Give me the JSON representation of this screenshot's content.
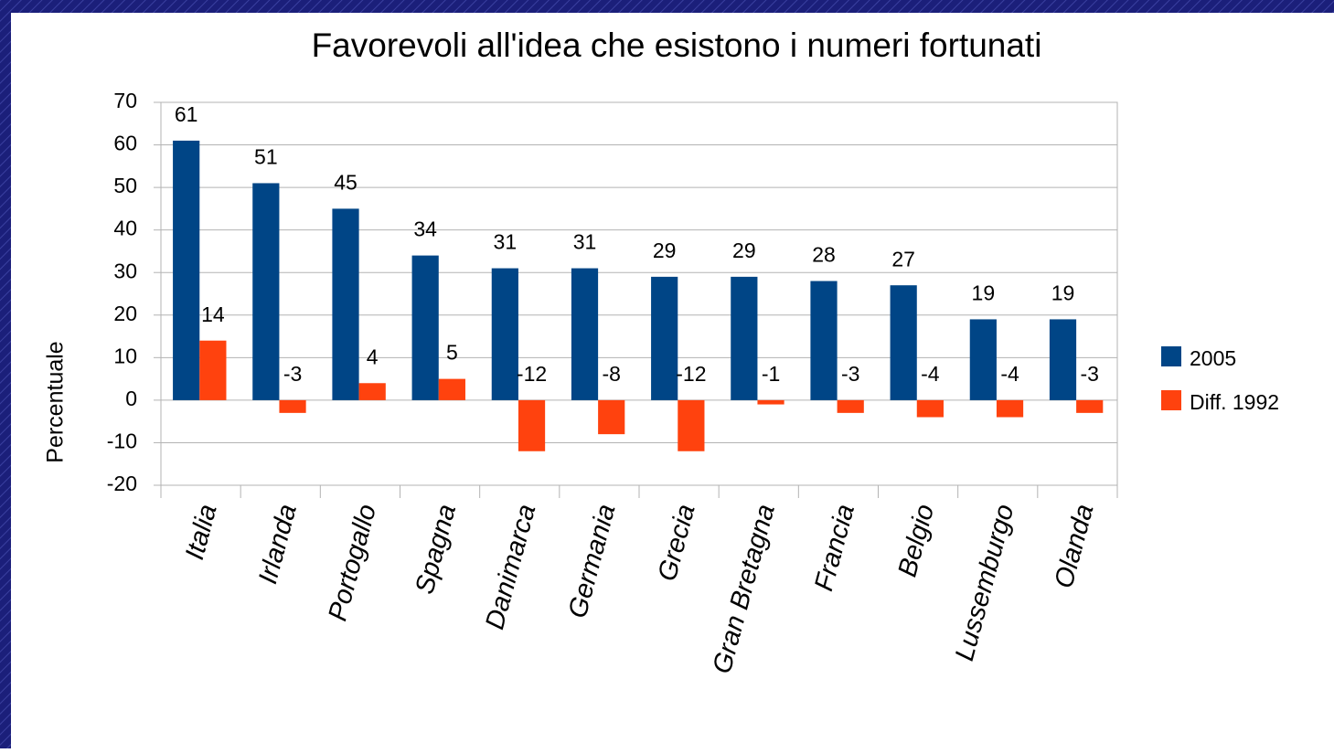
{
  "chart_data": {
    "type": "bar",
    "title": "Favorevoli all'idea che esistono i numeri fortunati",
    "y_label": "Percentuale",
    "categories": [
      "Italia",
      "Irlanda",
      "Portogallo",
      "Spagna",
      "Danimarca",
      "Germania",
      "Grecia",
      "Gran Bretagna",
      "Francia",
      "Belgio",
      "Lussemburgo",
      "Olanda"
    ],
    "series": [
      {
        "name": "2005",
        "color": "#004586",
        "values": [
          61,
          51,
          45,
          34,
          31,
          31,
          29,
          29,
          28,
          27,
          19,
          19
        ]
      },
      {
        "name": "Diff. 1992",
        "color": "#ff420e",
        "values": [
          14,
          -3,
          4,
          5,
          -12,
          -8,
          -12,
          -1,
          -3,
          -4,
          -4,
          -3
        ]
      }
    ],
    "ylim": [
      -20,
      70
    ],
    "yticks": [
      -20,
      -10,
      0,
      10,
      20,
      30,
      40,
      50,
      60,
      70
    ],
    "grid": true,
    "legend": "right"
  }
}
